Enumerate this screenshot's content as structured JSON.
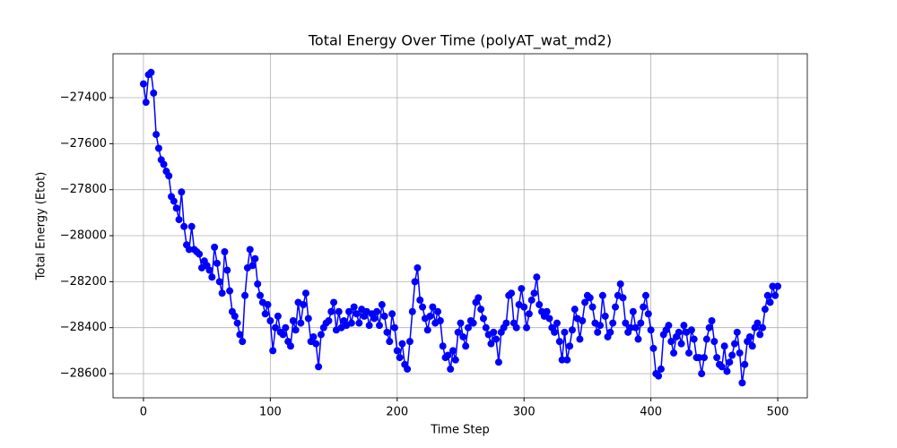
{
  "chart_data": {
    "type": "line",
    "title": "Total Energy Over Time (polyAT_wat_md2)",
    "x_label": "Time Step",
    "y_label": "Total Energy (Etot)",
    "x": [
      0,
      2,
      4,
      6,
      8,
      10,
      12,
      14,
      16,
      18,
      20,
      22,
      24,
      26,
      28,
      30,
      32,
      34,
      36,
      38,
      40,
      42,
      44,
      46,
      48,
      50,
      52,
      54,
      56,
      58,
      60,
      62,
      64,
      66,
      68,
      70,
      72,
      74,
      76,
      78,
      80,
      82,
      84,
      86,
      88,
      90,
      92,
      94,
      96,
      98,
      100,
      102,
      104,
      106,
      108,
      110,
      112,
      114,
      116,
      118,
      120,
      122,
      124,
      126,
      128,
      130,
      132,
      134,
      136,
      138,
      140,
      142,
      144,
      146,
      148,
      150,
      152,
      154,
      156,
      158,
      160,
      162,
      164,
      166,
      168,
      170,
      172,
      174,
      176,
      178,
      180,
      182,
      184,
      186,
      188,
      190,
      192,
      194,
      196,
      198,
      200,
      202,
      204,
      206,
      208,
      210,
      212,
      214,
      216,
      218,
      220,
      222,
      224,
      226,
      228,
      230,
      232,
      234,
      236,
      238,
      240,
      242,
      244,
      246,
      248,
      250,
      252,
      254,
      256,
      258,
      260,
      262,
      264,
      266,
      268,
      270,
      272,
      274,
      276,
      278,
      280,
      282,
      284,
      286,
      288,
      290,
      292,
      294,
      296,
      298,
      300,
      302,
      304,
      306,
      308,
      310,
      312,
      314,
      316,
      318,
      320,
      322,
      324,
      326,
      328,
      330,
      332,
      334,
      336,
      338,
      340,
      342,
      344,
      346,
      348,
      350,
      352,
      354,
      356,
      358,
      360,
      362,
      364,
      366,
      368,
      370,
      372,
      374,
      376,
      378,
      380,
      382,
      384,
      386,
      388,
      390,
      392,
      394,
      396,
      398,
      400,
      402,
      404,
      406,
      408,
      410,
      412,
      414,
      416,
      418,
      420,
      422,
      424,
      426,
      428,
      430,
      432,
      434,
      436,
      438,
      440,
      442,
      444,
      446,
      448,
      450,
      452,
      454,
      456,
      458,
      460,
      462,
      464,
      466,
      468,
      470,
      472,
      474,
      476,
      478,
      480,
      482,
      484,
      486,
      488,
      490,
      492,
      494,
      496,
      498,
      500
    ],
    "series": [
      {
        "color": "#0000ff",
        "values": [
          -27340,
          -27420,
          -27300,
          -27290,
          -27380,
          -27560,
          -27620,
          -27670,
          -27690,
          -27720,
          -27740,
          -27830,
          -27850,
          -27880,
          -27930,
          -27810,
          -27960,
          -28040,
          -28060,
          -27960,
          -28060,
          -28070,
          -28080,
          -28140,
          -28110,
          -28130,
          -28150,
          -28180,
          -28050,
          -28120,
          -28200,
          -28250,
          -28070,
          -28150,
          -28240,
          -28330,
          -28350,
          -28380,
          -28430,
          -28460,
          -28260,
          -28140,
          -28060,
          -28130,
          -28100,
          -28210,
          -28260,
          -28290,
          -28340,
          -28300,
          -28370,
          -28500,
          -28400,
          -28350,
          -28420,
          -28430,
          -28400,
          -28460,
          -28480,
          -28370,
          -28410,
          -28290,
          -28380,
          -28300,
          -28250,
          -28360,
          -28460,
          -28440,
          -28470,
          -28570,
          -28430,
          -28400,
          -28380,
          -28370,
          -28330,
          -28290,
          -28410,
          -28330,
          -28400,
          -28370,
          -28390,
          -28330,
          -28380,
          -28310,
          -28340,
          -28380,
          -28320,
          -28350,
          -28330,
          -28390,
          -28340,
          -28360,
          -28330,
          -28390,
          -28300,
          -28350,
          -28420,
          -28460,
          -28340,
          -28400,
          -28500,
          -28530,
          -28470,
          -28560,
          -28580,
          -28460,
          -28330,
          -28200,
          -28140,
          -28280,
          -28310,
          -28360,
          -28410,
          -28350,
          -28310,
          -28380,
          -28330,
          -28370,
          -28480,
          -28530,
          -28520,
          -28580,
          -28500,
          -28540,
          -28420,
          -28380,
          -28440,
          -28480,
          -28400,
          -28370,
          -28380,
          -28290,
          -28270,
          -28320,
          -28360,
          -28400,
          -28430,
          -28470,
          -28420,
          -28450,
          -28550,
          -28420,
          -28400,
          -28380,
          -28260,
          -28250,
          -28380,
          -28400,
          -28300,
          -28230,
          -28310,
          -28400,
          -28340,
          -28280,
          -28250,
          -28180,
          -28300,
          -28330,
          -28350,
          -28330,
          -28360,
          -28400,
          -28420,
          -28380,
          -28460,
          -28540,
          -28420,
          -28540,
          -28480,
          -28410,
          -28320,
          -28360,
          -28450,
          -28370,
          -28290,
          -28260,
          -28270,
          -28310,
          -28380,
          -28420,
          -28390,
          -28260,
          -28350,
          -28440,
          -28420,
          -28380,
          -28310,
          -28260,
          -28210,
          -28270,
          -28380,
          -28420,
          -28400,
          -28330,
          -28400,
          -28450,
          -28380,
          -28310,
          -28260,
          -28340,
          -28410,
          -28490,
          -28600,
          -28610,
          -28580,
          -28430,
          -28410,
          -28390,
          -28460,
          -28510,
          -28440,
          -28420,
          -28470,
          -28390,
          -28420,
          -28510,
          -28410,
          -28450,
          -28530,
          -28530,
          -28600,
          -28530,
          -28450,
          -28400,
          -28370,
          -28460,
          -28530,
          -28560,
          -28570,
          -28480,
          -28590,
          -28550,
          -28520,
          -28470,
          -28420,
          -28510,
          -28640,
          -28560,
          -28460,
          -28440,
          -28480,
          -28400,
          -28380,
          -28430,
          -28400,
          -28320,
          -28260,
          -28290,
          -28220,
          -28260,
          -28220
        ]
      }
    ],
    "xlim": [
      -24,
      523.3
    ],
    "ylim": [
      -28705,
      -27209
    ],
    "xticks": [
      0,
      100,
      200,
      300,
      400,
      500
    ],
    "yticks": [
      {
        "value": -28600,
        "label": "−28600"
      },
      {
        "value": -28400,
        "label": "−28400"
      },
      {
        "value": -28200,
        "label": "−28200"
      },
      {
        "value": -28000,
        "label": "−28000"
      },
      {
        "value": -27800,
        "label": "−27800"
      },
      {
        "value": -27600,
        "label": "−27600"
      },
      {
        "value": -27400,
        "label": "−27400"
      }
    ],
    "grid": true
  }
}
